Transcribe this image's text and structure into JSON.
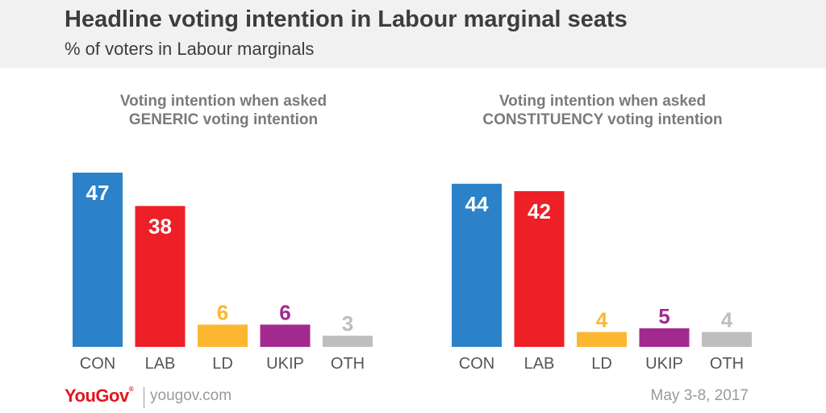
{
  "header": {
    "title": "Headline voting intention in Labour marginal seats",
    "subtitle": "% of voters in Labour marginals"
  },
  "colors": {
    "CON": "#2b82c9",
    "LAB": "#ee1f26",
    "LD": "#fbb731",
    "UKIP": "#a22a8f",
    "OTH": "#bebebe",
    "label_inside": "#ffffff"
  },
  "chart_data": [
    {
      "type": "bar",
      "title": "Voting intention when asked GENERIC voting intention",
      "title_lines": [
        "Voting intention when asked",
        "GENERIC voting intention"
      ],
      "categories": [
        "CON",
        "LAB",
        "LD",
        "UKIP",
        "OTH"
      ],
      "values": [
        47,
        38,
        6,
        6,
        3
      ],
      "ylim": [
        0,
        47
      ],
      "grid": false,
      "legend": "none"
    },
    {
      "type": "bar",
      "title": "Voting intention when asked CONSTITUENCY voting intention",
      "title_lines": [
        "Voting intention when asked",
        "CONSTITUENCY voting intention"
      ],
      "categories": [
        "CON",
        "LAB",
        "LD",
        "UKIP",
        "OTH"
      ],
      "values": [
        44,
        42,
        4,
        5,
        4
      ],
      "ylim": [
        0,
        47
      ],
      "grid": false,
      "legend": "none"
    }
  ],
  "footer": {
    "logo": "YouGov",
    "logo_mark": "®",
    "site": "yougov.com",
    "date": "May 3-8, 2017"
  }
}
